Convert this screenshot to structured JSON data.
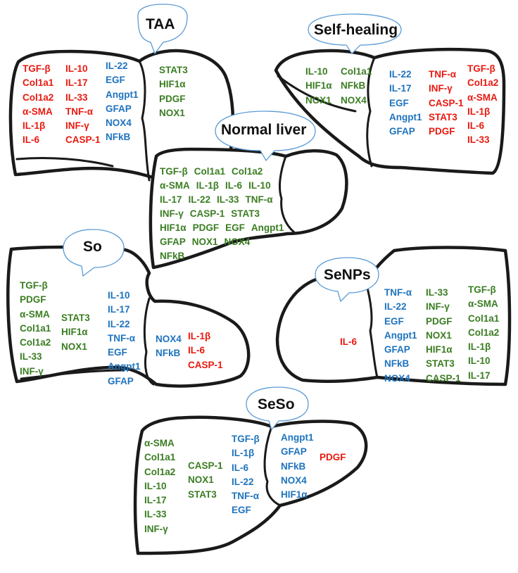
{
  "colors": {
    "red": "#e8190f",
    "blue": "#1e73be",
    "green": "#3a7d22",
    "bubble_stroke": "#5b9bd5",
    "outline": "#1a1a1a"
  },
  "panels": [
    {
      "id": "taa",
      "title": "TAA",
      "columns": [
        {
          "color": "red",
          "items": [
            "TGF-β",
            "Col1a1",
            "Col1a2",
            "α-SMA",
            "IL-1β",
            "IL-6"
          ]
        },
        {
          "color": "red",
          "items": [
            "IL-10",
            "IL-17",
            "IL-33",
            "TNF-α",
            "INF-γ",
            "CASP-1"
          ]
        },
        {
          "color": "blue",
          "items": [
            "IL-22",
            "EGF",
            "Angpt1",
            "GFAP",
            "NOX4",
            "NFkB"
          ]
        },
        {
          "color": "green",
          "items": [
            "STAT3",
            "HIF1α",
            "PDGF",
            "NOX1"
          ]
        }
      ]
    },
    {
      "id": "self-healing",
      "title": "Self-healing",
      "columns": [
        {
          "color": "green",
          "items": [
            "IL-10",
            "HIF1α",
            "NOX1"
          ]
        },
        {
          "color": "green",
          "items": [
            "Col1a1",
            "NFkB",
            "NOX4"
          ]
        },
        {
          "color": "blue",
          "items": [
            "IL-22",
            "IL-17",
            "EGF",
            "Angpt1",
            "GFAP"
          ]
        },
        {
          "color": "red",
          "items": [
            "TNF-α",
            "INF-γ",
            "CASP-1",
            "STAT3",
            "PDGF"
          ]
        },
        {
          "color": "red",
          "items": [
            "TGF-β",
            "Col1a2",
            "α-SMA",
            "IL-1β",
            "IL-6",
            "IL-33"
          ]
        }
      ]
    },
    {
      "id": "normal-liver",
      "title": "Normal liver",
      "rows": [
        [
          "TGF-β",
          "Col1a1",
          "Col1a2"
        ],
        [
          "α-SMA",
          "IL-1β",
          "IL-6",
          "IL-10"
        ],
        [
          "IL-17",
          "IL-22",
          "IL-33",
          "TNF-α"
        ],
        [
          "INF-γ",
          "CASP-1",
          "STAT3"
        ],
        [
          "HIF1α",
          "PDGF",
          "EGF",
          "Angpt1"
        ],
        [
          "GFAP",
          "NOX1",
          "NOX4"
        ],
        [
          "NFkB"
        ]
      ]
    },
    {
      "id": "so",
      "title": "So",
      "columns": [
        {
          "color": "green",
          "items": [
            "TGF-β",
            "PDGF",
            "α-SMA",
            "Col1a1",
            "Col1a2",
            "IL-33",
            "INF-γ"
          ]
        },
        {
          "color": "green",
          "items": [
            "STAT3",
            "HIF1α",
            "NOX1"
          ]
        },
        {
          "color": "blue",
          "items": [
            "IL-10",
            "IL-17",
            "IL-22",
            "TNF-α",
            "EGF",
            "Angpt1",
            "GFAP"
          ]
        },
        {
          "color": "blue",
          "items": [
            "NOX4",
            "NFkB"
          ]
        },
        {
          "color": "red",
          "items": [
            "IL-1β",
            "IL-6",
            "CASP-1"
          ]
        }
      ]
    },
    {
      "id": "senps",
      "title": "SeNPs",
      "columns": [
        {
          "color": "red",
          "items": [
            "IL-6"
          ]
        },
        {
          "color": "blue",
          "items": [
            "TNF-α",
            "IL-22",
            "EGF",
            "Angpt1",
            "GFAP",
            "NFkB",
            "NOX4"
          ]
        },
        {
          "color": "green",
          "items": [
            "IL-33",
            "INF-γ",
            "PDGF",
            "NOX1",
            "HIF1α",
            "STAT3",
            "CASP-1"
          ]
        },
        {
          "color": "green",
          "items": [
            "TGF-β",
            "α-SMA",
            "Col1a1",
            "Col1a2",
            "IL-1β",
            "IL-10",
            "IL-17"
          ]
        }
      ]
    },
    {
      "id": "seso",
      "title": "SeSo",
      "columns": [
        {
          "color": "green",
          "items": [
            "α-SMA",
            "Col1a1",
            "Col1a2",
            "IL-10",
            "IL-17",
            "IL-33",
            "INF-γ"
          ]
        },
        {
          "color": "green",
          "items": [
            "CASP-1",
            "NOX1",
            "STAT3"
          ]
        },
        {
          "color": "blue",
          "items": [
            "TGF-β",
            "IL-1β",
            "IL-6",
            "IL-22",
            "TNF-α",
            "EGF"
          ]
        },
        {
          "color": "blue",
          "items": [
            "Angpt1",
            "GFAP",
            "NFkB",
            "NOX4",
            "HIF1α"
          ]
        },
        {
          "color": "red",
          "items": [
            "PDGF"
          ]
        }
      ]
    }
  ]
}
